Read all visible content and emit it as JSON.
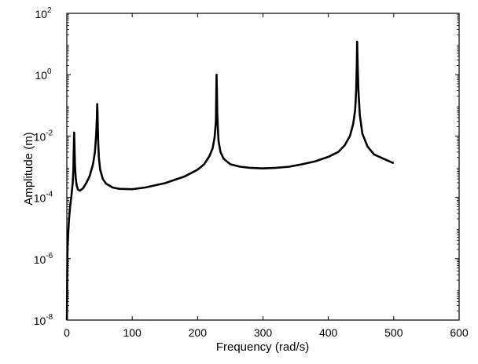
{
  "chart_data": {
    "type": "line",
    "title": "",
    "xlabel": "Frequency (rad/s)",
    "ylabel": "Amplitude (m)",
    "xlim": [
      0,
      600
    ],
    "ylim_exponent": [
      -8,
      2
    ],
    "yscale": "log",
    "grid": false,
    "x_ticks": [
      "0",
      "100",
      "200",
      "300",
      "400",
      "500",
      "600"
    ],
    "y_ticks": [
      {
        "base": "10",
        "exp": "-8"
      },
      {
        "base": "10",
        "exp": "-6"
      },
      {
        "base": "10",
        "exp": "-4"
      },
      {
        "base": "10",
        "exp": "-2"
      },
      {
        "base": "10",
        "exp": "0"
      },
      {
        "base": "10",
        "exp": "2"
      }
    ],
    "line_color": "#000000",
    "series": [
      {
        "x": [
          0.1,
          1,
          2,
          3,
          4,
          5,
          7,
          9,
          10,
          10.8,
          11.2,
          11.6,
          12,
          12.4,
          12.8,
          13.5,
          15,
          17,
          20,
          25,
          30,
          35,
          40,
          43,
          45,
          46,
          46.5,
          47,
          47.5,
          48,
          49,
          51,
          55,
          60,
          70,
          80,
          100,
          120,
          150,
          180,
          200,
          210,
          218,
          223,
          226,
          228,
          229,
          229.5,
          230,
          231,
          232,
          235,
          240,
          250,
          265,
          280,
          300,
          320,
          340,
          360,
          380,
          400,
          415,
          425,
          433,
          438,
          441,
          442.5,
          443.5,
          444,
          445,
          446,
          448,
          452,
          460,
          470,
          485,
          500
        ],
        "y": [
          1e-08,
          2e-06,
          6e-06,
          1.5e-05,
          2.8e-05,
          5e-05,
          0.00011,
          0.0003,
          0.0008,
          0.005,
          0.013,
          0.006,
          0.0025,
          0.0012,
          0.0008,
          0.00045,
          0.00025,
          0.00018,
          0.000165,
          0.0002,
          0.0003,
          0.0005,
          0.0012,
          0.003,
          0.012,
          0.04,
          0.11,
          0.05,
          0.015,
          0.006,
          0.002,
          0.0008,
          0.0004,
          0.00028,
          0.00021,
          0.00019,
          0.000185,
          0.00021,
          0.00029,
          0.00048,
          0.0008,
          0.0012,
          0.0022,
          0.004,
          0.009,
          0.03,
          1.0,
          0.3,
          0.06,
          0.018,
          0.007,
          0.003,
          0.0018,
          0.0012,
          0.001,
          0.00092,
          0.00088,
          0.00092,
          0.001,
          0.0012,
          0.0015,
          0.0021,
          0.003,
          0.005,
          0.01,
          0.025,
          0.07,
          0.3,
          2.0,
          12.0,
          1.5,
          0.3,
          0.05,
          0.012,
          0.0045,
          0.0025,
          0.0018,
          0.0013
        ]
      }
    ]
  }
}
